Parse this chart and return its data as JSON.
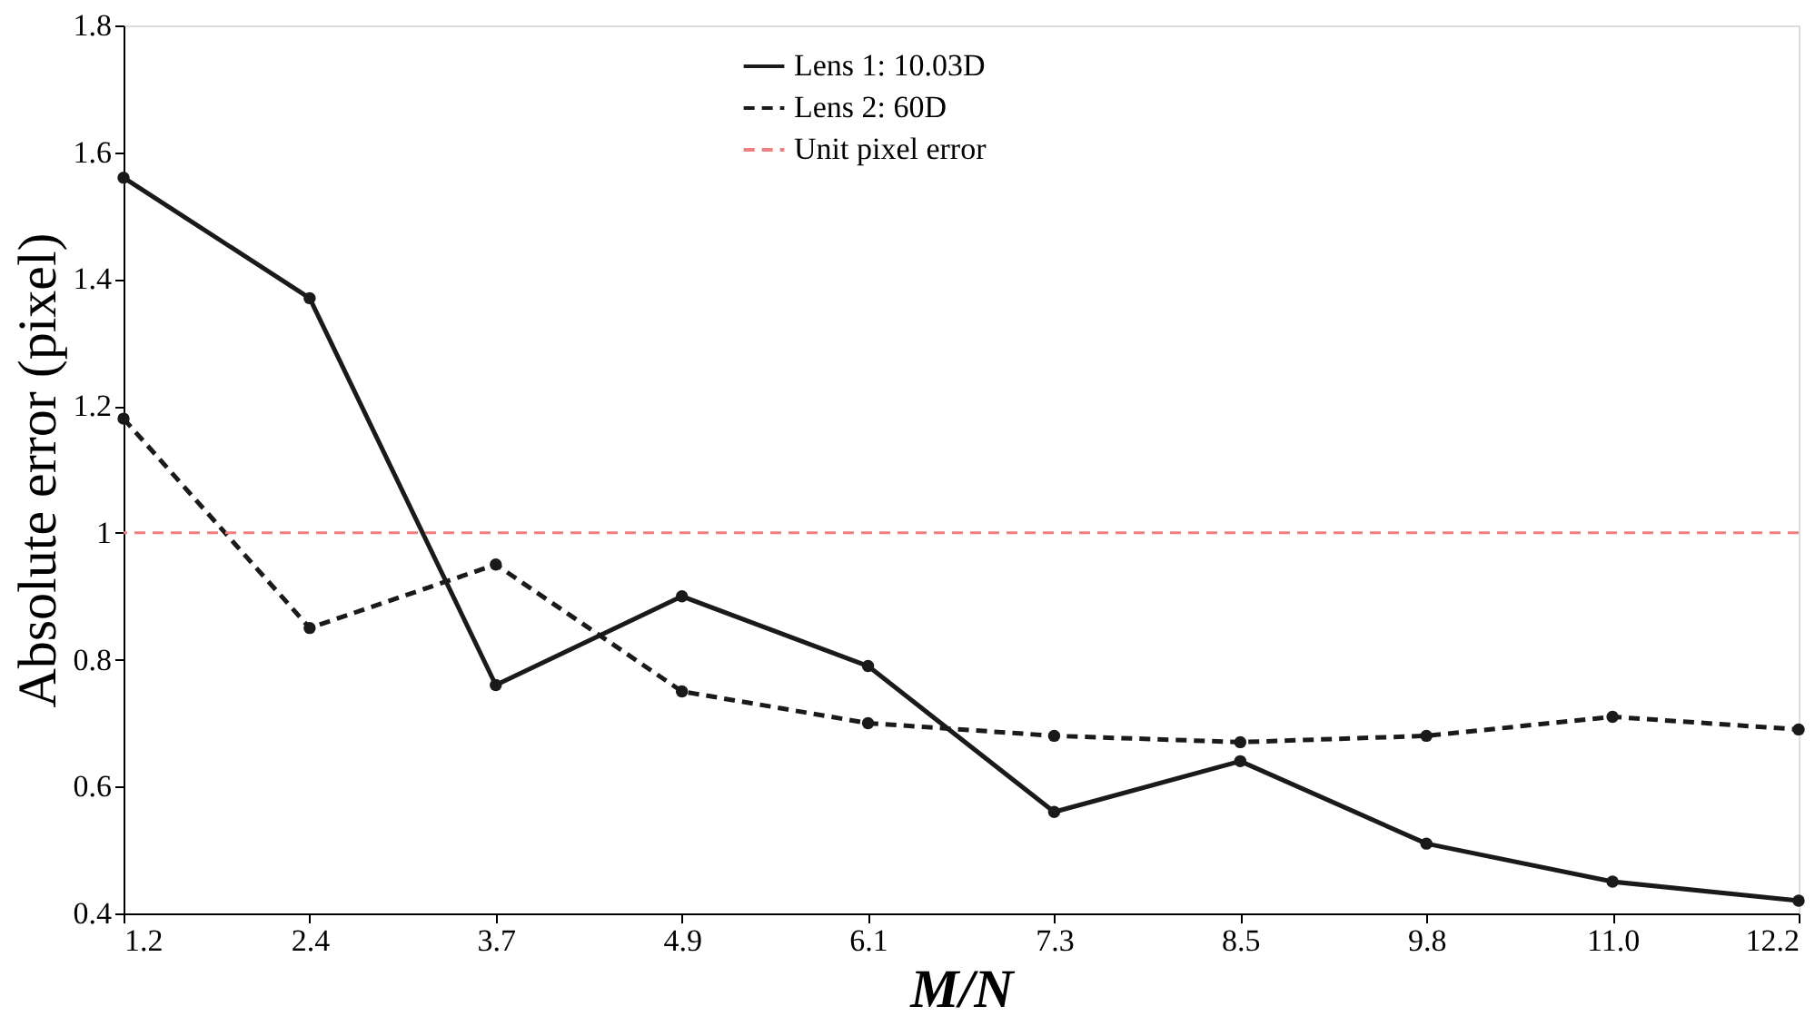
{
  "chart_data": {
    "type": "line",
    "xlabel": "M/N",
    "ylabel": "Absolute error (pixel)",
    "categories": [
      "1.2",
      "2.4",
      "3.7",
      "4.9",
      "6.1",
      "7.3",
      "8.5",
      "9.8",
      "11.0",
      "12.2"
    ],
    "series": [
      {
        "name": "Lens 1: 10.03D",
        "color": "#1a1a1a",
        "line_style": "solid",
        "values": [
          1.56,
          1.37,
          0.76,
          0.9,
          0.79,
          0.56,
          0.64,
          0.51,
          0.45,
          0.42
        ]
      },
      {
        "name": "Lens 2: 60D",
        "color": "#1a1a1a",
        "line_style": "dashed",
        "values": [
          1.18,
          0.85,
          0.95,
          0.75,
          0.7,
          0.68,
          0.67,
          0.68,
          0.71,
          0.69
        ]
      }
    ],
    "ref_lines": [
      {
        "axis": "y",
        "value": 1,
        "label": "Unit pixel error",
        "color": "#f08080",
        "line_style": "dashed"
      }
    ],
    "ylim": [
      0.4,
      1.8
    ],
    "yticks": [
      0.4,
      0.6,
      0.8,
      {
        "value": 1,
        "label": "1"
      },
      1.2,
      1.4,
      1.6,
      1.8
    ],
    "marker": "circle",
    "grid": false,
    "legend": "top"
  }
}
